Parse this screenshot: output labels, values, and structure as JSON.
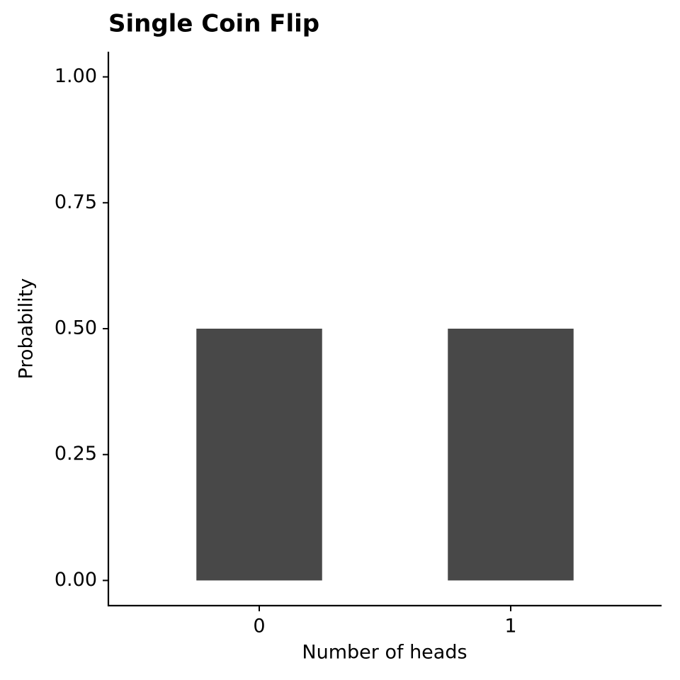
{
  "chart_data": {
    "type": "bar",
    "title": "Single Coin Flip",
    "x_label": "Number of heads",
    "y_label": "Probability",
    "categories": [
      "0",
      "1"
    ],
    "values": [
      0.5,
      0.5
    ],
    "color": "#484848",
    "ylim": [
      -0.05,
      1.05
    ],
    "yticks": [
      {
        "value": 0,
        "label": "0.00"
      },
      {
        "value": 0.25,
        "label": "0.25"
      },
      {
        "value": 0.5,
        "label": "0.50"
      },
      {
        "value": 0.75,
        "label": "0.75"
      },
      {
        "value": 1,
        "label": "1.00"
      }
    ],
    "grid": false
  }
}
